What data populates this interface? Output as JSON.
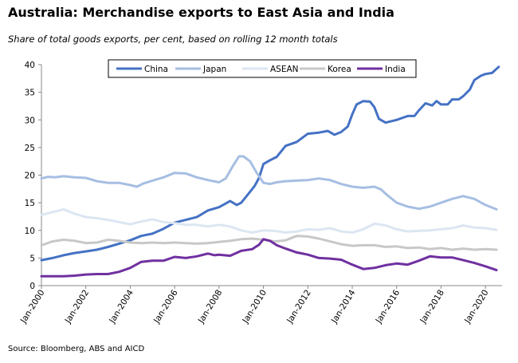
{
  "title": "Australia: Merchandise exports to East Asia and India",
  "subtitle": "Share of total goods exports, per cent, based on rolling 12 month totals",
  "source": "Source: Bloomberg, ABS and AICD",
  "chart_data": {
    "type": "line",
    "title": "Australia: Merchandise exports to East Asia and India",
    "ylim": [
      0,
      40
    ],
    "yticks": [
      0,
      5,
      10,
      15,
      20,
      25,
      30,
      35,
      40
    ],
    "xlim": [
      2000.0,
      2020.75
    ],
    "xticks": [
      {
        "x": 2000,
        "label": "Jan-2000"
      },
      {
        "x": 2002,
        "label": "Jan-2002"
      },
      {
        "x": 2004,
        "label": "Jan-2004"
      },
      {
        "x": 2006,
        "label": "Jan-2006"
      },
      {
        "x": 2008,
        "label": "Jan-2008"
      },
      {
        "x": 2010,
        "label": "Jan-2010"
      },
      {
        "x": 2012,
        "label": "Jan-2012"
      },
      {
        "x": 2014,
        "label": "Jan-2014"
      },
      {
        "x": 2016,
        "label": "Jan-2016"
      },
      {
        "x": 2018,
        "label": "Jan-2018"
      },
      {
        "x": 2020,
        "label": "Jan-2020"
      }
    ],
    "grid": false,
    "legend_position": "top",
    "series": [
      {
        "name": "China",
        "color": "#4472C4",
        "points": [
          [
            2000.0,
            4.6
          ],
          [
            2000.5,
            5.0
          ],
          [
            2001.0,
            5.5
          ],
          [
            2001.5,
            5.9
          ],
          [
            2002.0,
            6.2
          ],
          [
            2002.5,
            6.5
          ],
          [
            2003.0,
            7.0
          ],
          [
            2003.5,
            7.6
          ],
          [
            2004.0,
            8.2
          ],
          [
            2004.5,
            9.0
          ],
          [
            2005.0,
            9.4
          ],
          [
            2005.5,
            10.3
          ],
          [
            2006.0,
            11.4
          ],
          [
            2006.5,
            11.9
          ],
          [
            2007.0,
            12.4
          ],
          [
            2007.5,
            13.6
          ],
          [
            2008.0,
            14.2
          ],
          [
            2008.5,
            15.3
          ],
          [
            2008.8,
            14.6
          ],
          [
            2009.0,
            15.0
          ],
          [
            2009.3,
            16.5
          ],
          [
            2009.6,
            18.0
          ],
          [
            2009.8,
            19.5
          ],
          [
            2010.0,
            22.0
          ],
          [
            2010.3,
            22.7
          ],
          [
            2010.6,
            23.3
          ],
          [
            2011.0,
            25.3
          ],
          [
            2011.5,
            26.0
          ],
          [
            2012.0,
            27.5
          ],
          [
            2012.5,
            27.7
          ],
          [
            2012.9,
            28.0
          ],
          [
            2013.2,
            27.3
          ],
          [
            2013.5,
            27.8
          ],
          [
            2013.8,
            28.8
          ],
          [
            2014.0,
            31.0
          ],
          [
            2014.2,
            32.8
          ],
          [
            2014.5,
            33.4
          ],
          [
            2014.8,
            33.3
          ],
          [
            2015.0,
            32.3
          ],
          [
            2015.2,
            30.2
          ],
          [
            2015.5,
            29.5
          ],
          [
            2016.0,
            30.0
          ],
          [
            2016.5,
            30.7
          ],
          [
            2016.8,
            30.7
          ],
          [
            2017.0,
            31.7
          ],
          [
            2017.3,
            33.0
          ],
          [
            2017.6,
            32.6
          ],
          [
            2017.8,
            33.4
          ],
          [
            2018.0,
            32.8
          ],
          [
            2018.3,
            32.8
          ],
          [
            2018.5,
            33.7
          ],
          [
            2018.8,
            33.7
          ],
          [
            2019.0,
            34.3
          ],
          [
            2019.3,
            35.5
          ],
          [
            2019.5,
            37.2
          ],
          [
            2019.8,
            38.0
          ],
          [
            2020.0,
            38.3
          ],
          [
            2020.3,
            38.5
          ],
          [
            2020.6,
            39.6
          ]
        ]
      },
      {
        "name": "Japan",
        "color": "#A6BEE2",
        "points": [
          [
            2000.0,
            19.4
          ],
          [
            2000.3,
            19.7
          ],
          [
            2000.6,
            19.6
          ],
          [
            2001.0,
            19.8
          ],
          [
            2001.5,
            19.6
          ],
          [
            2002.0,
            19.5
          ],
          [
            2002.5,
            18.9
          ],
          [
            2003.0,
            18.6
          ],
          [
            2003.5,
            18.6
          ],
          [
            2004.0,
            18.2
          ],
          [
            2004.3,
            17.9
          ],
          [
            2004.6,
            18.5
          ],
          [
            2005.0,
            19.0
          ],
          [
            2005.5,
            19.6
          ],
          [
            2006.0,
            20.4
          ],
          [
            2006.5,
            20.3
          ],
          [
            2007.0,
            19.6
          ],
          [
            2007.5,
            19.1
          ],
          [
            2008.0,
            18.7
          ],
          [
            2008.3,
            19.4
          ],
          [
            2008.6,
            21.5
          ],
          [
            2008.9,
            23.4
          ],
          [
            2009.1,
            23.4
          ],
          [
            2009.4,
            22.5
          ],
          [
            2009.7,
            20.4
          ],
          [
            2010.0,
            18.6
          ],
          [
            2010.3,
            18.4
          ],
          [
            2010.6,
            18.7
          ],
          [
            2011.0,
            18.9
          ],
          [
            2011.5,
            19.0
          ],
          [
            2012.0,
            19.1
          ],
          [
            2012.5,
            19.4
          ],
          [
            2013.0,
            19.1
          ],
          [
            2013.5,
            18.4
          ],
          [
            2014.0,
            17.9
          ],
          [
            2014.5,
            17.7
          ],
          [
            2015.0,
            17.9
          ],
          [
            2015.3,
            17.4
          ],
          [
            2015.6,
            16.3
          ],
          [
            2016.0,
            15.0
          ],
          [
            2016.5,
            14.3
          ],
          [
            2017.0,
            13.9
          ],
          [
            2017.5,
            14.3
          ],
          [
            2018.0,
            15.0
          ],
          [
            2018.5,
            15.7
          ],
          [
            2019.0,
            16.2
          ],
          [
            2019.5,
            15.7
          ],
          [
            2020.0,
            14.6
          ],
          [
            2020.5,
            13.8
          ]
        ]
      },
      {
        "name": "ASEAN",
        "color": "#DCE6F2",
        "points": [
          [
            2000.0,
            12.8
          ],
          [
            2000.5,
            13.3
          ],
          [
            2001.0,
            13.8
          ],
          [
            2001.5,
            13.0
          ],
          [
            2002.0,
            12.4
          ],
          [
            2002.5,
            12.2
          ],
          [
            2003.0,
            11.9
          ],
          [
            2003.5,
            11.5
          ],
          [
            2004.0,
            11.1
          ],
          [
            2004.5,
            11.6
          ],
          [
            2005.0,
            12.0
          ],
          [
            2005.5,
            11.5
          ],
          [
            2006.0,
            11.3
          ],
          [
            2006.5,
            11.0
          ],
          [
            2007.0,
            11.0
          ],
          [
            2007.5,
            10.7
          ],
          [
            2008.0,
            11.0
          ],
          [
            2008.5,
            10.7
          ],
          [
            2009.0,
            10.0
          ],
          [
            2009.5,
            9.6
          ],
          [
            2010.0,
            10.0
          ],
          [
            2010.5,
            9.9
          ],
          [
            2011.0,
            9.6
          ],
          [
            2011.5,
            9.8
          ],
          [
            2012.0,
            10.2
          ],
          [
            2012.5,
            10.1
          ],
          [
            2013.0,
            10.4
          ],
          [
            2013.5,
            9.8
          ],
          [
            2014.0,
            9.6
          ],
          [
            2014.5,
            10.2
          ],
          [
            2015.0,
            11.2
          ],
          [
            2015.5,
            10.9
          ],
          [
            2016.0,
            10.2
          ],
          [
            2016.5,
            9.8
          ],
          [
            2017.0,
            9.9
          ],
          [
            2017.5,
            10.0
          ],
          [
            2018.0,
            10.2
          ],
          [
            2018.5,
            10.4
          ],
          [
            2019.0,
            10.9
          ],
          [
            2019.5,
            10.5
          ],
          [
            2020.0,
            10.4
          ],
          [
            2020.5,
            10.1
          ]
        ]
      },
      {
        "name": "Korea",
        "color": "#C8C8C8",
        "points": [
          [
            2000.0,
            7.3
          ],
          [
            2000.5,
            8.0
          ],
          [
            2001.0,
            8.3
          ],
          [
            2001.5,
            8.1
          ],
          [
            2002.0,
            7.7
          ],
          [
            2002.5,
            7.8
          ],
          [
            2003.0,
            8.3
          ],
          [
            2003.5,
            8.1
          ],
          [
            2004.0,
            7.8
          ],
          [
            2004.5,
            7.7
          ],
          [
            2005.0,
            7.8
          ],
          [
            2005.5,
            7.7
          ],
          [
            2006.0,
            7.8
          ],
          [
            2006.5,
            7.7
          ],
          [
            2007.0,
            7.6
          ],
          [
            2007.5,
            7.7
          ],
          [
            2008.0,
            7.9
          ],
          [
            2008.5,
            8.1
          ],
          [
            2009.0,
            8.4
          ],
          [
            2009.5,
            8.5
          ],
          [
            2010.0,
            8.3
          ],
          [
            2010.5,
            8.0
          ],
          [
            2011.0,
            8.2
          ],
          [
            2011.5,
            9.0
          ],
          [
            2012.0,
            8.9
          ],
          [
            2012.5,
            8.5
          ],
          [
            2013.0,
            8.0
          ],
          [
            2013.5,
            7.5
          ],
          [
            2014.0,
            7.2
          ],
          [
            2014.5,
            7.3
          ],
          [
            2015.0,
            7.3
          ],
          [
            2015.5,
            7.0
          ],
          [
            2016.0,
            7.1
          ],
          [
            2016.5,
            6.8
          ],
          [
            2017.0,
            6.9
          ],
          [
            2017.5,
            6.6
          ],
          [
            2018.0,
            6.8
          ],
          [
            2018.5,
            6.5
          ],
          [
            2019.0,
            6.7
          ],
          [
            2019.5,
            6.5
          ],
          [
            2020.0,
            6.6
          ],
          [
            2020.5,
            6.5
          ]
        ]
      },
      {
        "name": "India",
        "color": "#7030A0",
        "points": [
          [
            2000.0,
            1.7
          ],
          [
            2000.5,
            1.7
          ],
          [
            2001.0,
            1.7
          ],
          [
            2001.5,
            1.8
          ],
          [
            2002.0,
            2.0
          ],
          [
            2002.5,
            2.1
          ],
          [
            2003.0,
            2.1
          ],
          [
            2003.5,
            2.5
          ],
          [
            2004.0,
            3.2
          ],
          [
            2004.5,
            4.3
          ],
          [
            2005.0,
            4.5
          ],
          [
            2005.5,
            4.5
          ],
          [
            2006.0,
            5.2
          ],
          [
            2006.5,
            5.0
          ],
          [
            2007.0,
            5.3
          ],
          [
            2007.5,
            5.8
          ],
          [
            2007.8,
            5.5
          ],
          [
            2008.0,
            5.6
          ],
          [
            2008.5,
            5.4
          ],
          [
            2009.0,
            6.3
          ],
          [
            2009.5,
            6.6
          ],
          [
            2009.8,
            7.4
          ],
          [
            2010.0,
            8.4
          ],
          [
            2010.3,
            8.1
          ],
          [
            2010.6,
            7.3
          ],
          [
            2011.0,
            6.7
          ],
          [
            2011.5,
            6.0
          ],
          [
            2012.0,
            5.6
          ],
          [
            2012.5,
            5.0
          ],
          [
            2013.0,
            4.9
          ],
          [
            2013.5,
            4.7
          ],
          [
            2014.0,
            3.8
          ],
          [
            2014.5,
            3.0
          ],
          [
            2015.0,
            3.2
          ],
          [
            2015.5,
            3.7
          ],
          [
            2016.0,
            4.0
          ],
          [
            2016.5,
            3.8
          ],
          [
            2017.0,
            4.5
          ],
          [
            2017.5,
            5.3
          ],
          [
            2018.0,
            5.1
          ],
          [
            2018.5,
            5.1
          ],
          [
            2019.0,
            4.6
          ],
          [
            2019.5,
            4.1
          ],
          [
            2020.0,
            3.5
          ],
          [
            2020.5,
            2.8
          ]
        ]
      }
    ]
  }
}
